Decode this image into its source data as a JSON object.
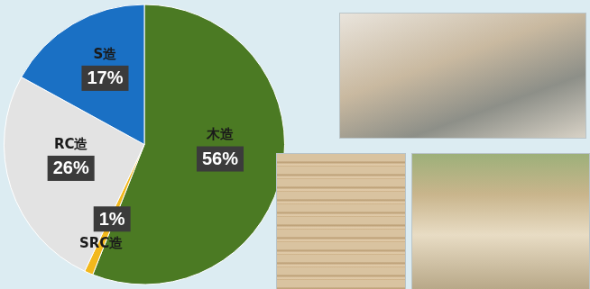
{
  "chart_data": {
    "type": "pie",
    "categories": [
      "木造",
      "SRC造",
      "RC造",
      "S造"
    ],
    "values": [
      56,
      1,
      26,
      17
    ],
    "value_labels": [
      "56%",
      "1%",
      "26%",
      "17%"
    ],
    "colors": [
      "#4b7a23",
      "#f2b81c",
      "#e3e3e3",
      "#1a70c4"
    ],
    "data_labels": true
  }
}
